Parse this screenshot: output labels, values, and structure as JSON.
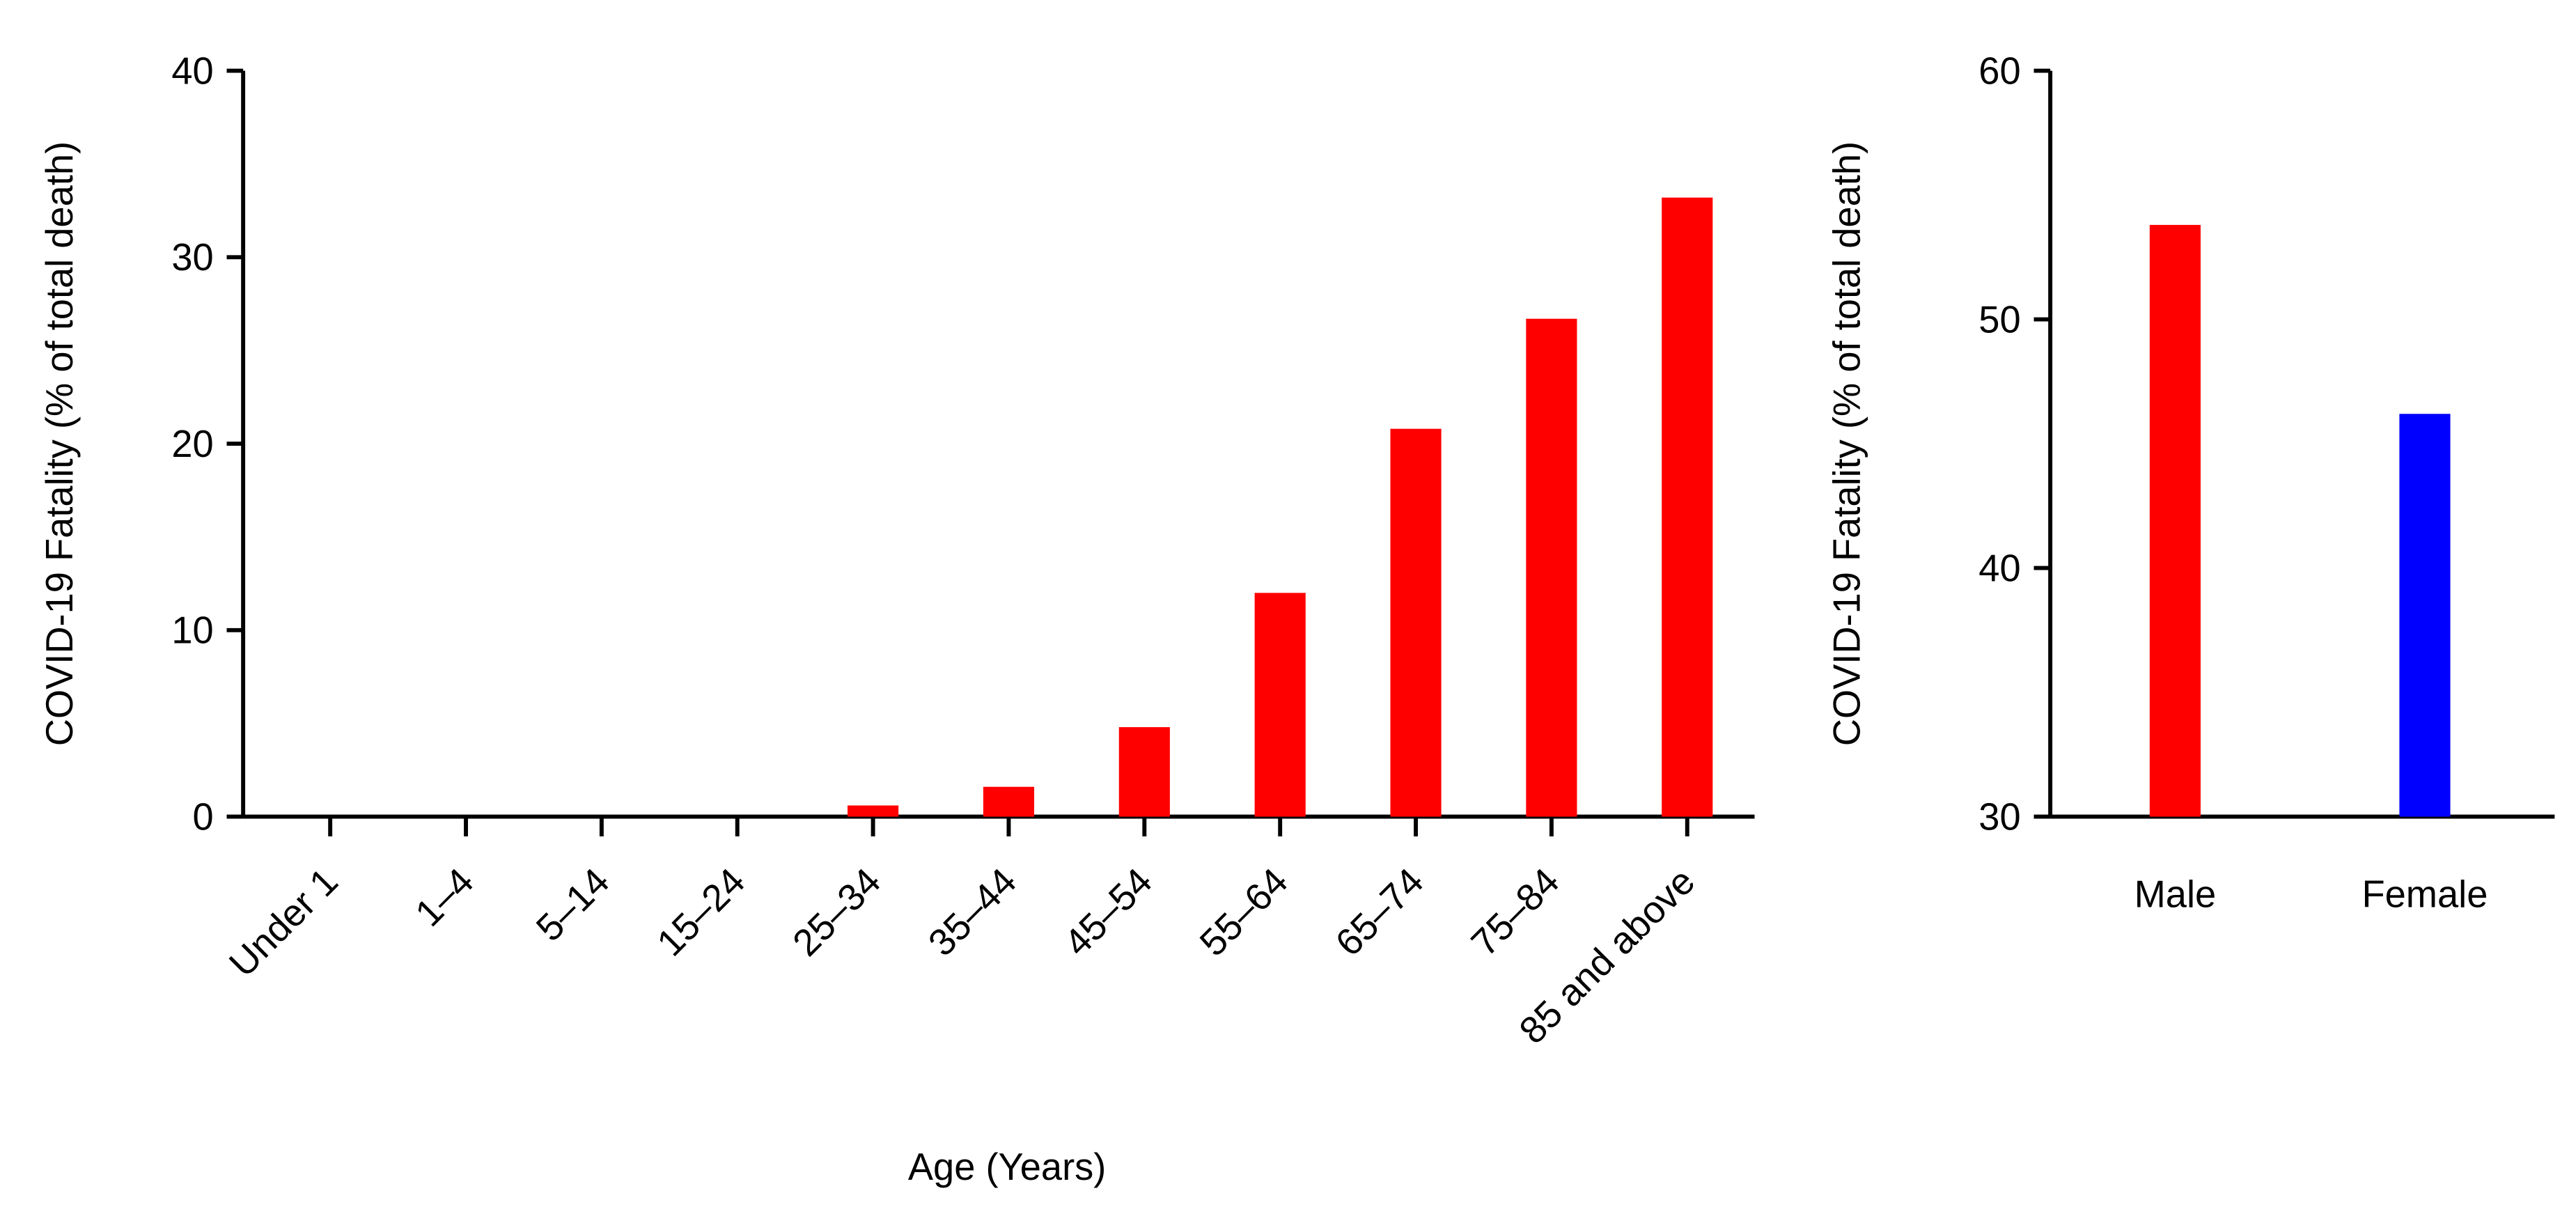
{
  "chart_data": [
    {
      "type": "bar",
      "y_label": "COVID-19 Fatality (% of total death)",
      "x_label": "Age (Years)",
      "categories": [
        "Under 1",
        "1–4",
        "5–14",
        "15–24",
        "25–34",
        "35–44",
        "45–54",
        "55–64",
        "65–74",
        "75–84",
        "85 and above"
      ],
      "values": [
        0,
        0,
        0,
        0,
        0.6,
        1.6,
        4.8,
        12.0,
        20.8,
        26.7,
        33.2
      ],
      "color": "#ff0000",
      "ylim": [
        0,
        40
      ],
      "yticks": [
        0,
        10,
        20,
        30,
        40
      ]
    },
    {
      "type": "bar",
      "y_label": "COVID-19 Fatality (% of total death)",
      "categories": [
        "Male",
        "Female"
      ],
      "values": [
        53.8,
        46.2
      ],
      "colors": [
        "#ff0000",
        "#0000ff"
      ],
      "ylim": [
        30,
        60
      ],
      "yticks": [
        30,
        40,
        50,
        60
      ]
    }
  ]
}
